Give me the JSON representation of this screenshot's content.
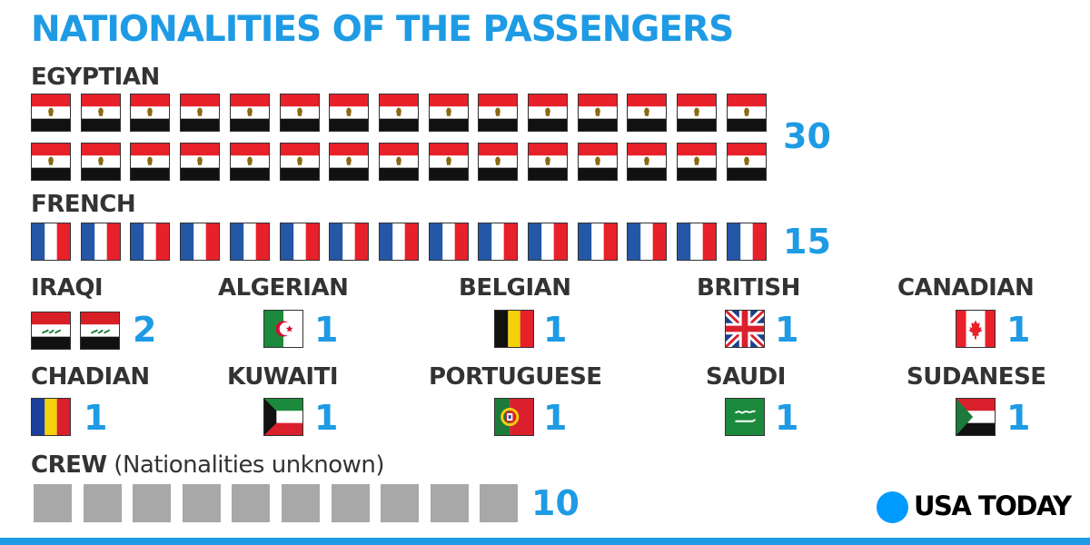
{
  "colors": {
    "accent": "#1e9be4",
    "text": "#333333",
    "crew": "#a8a8a8",
    "brand_dot": "#009bff"
  },
  "chart_data": {
    "type": "pictogram",
    "title": "NATIONALITIES OF THE PASSENGERS",
    "categories": [
      "EGYPTIAN",
      "FRENCH",
      "IRAQI",
      "ALGERIAN",
      "BELGIAN",
      "BRITISH",
      "CANADIAN",
      "CHADIAN",
      "KUWAITI",
      "PORTUGUESE",
      "SAUDI",
      "SUDANESE",
      "CREW"
    ],
    "values": [
      30,
      15,
      2,
      1,
      1,
      1,
      1,
      1,
      1,
      1,
      1,
      1,
      10
    ],
    "crew_note": "(Nationalities unknown)",
    "icons": [
      "egypt-flag",
      "france-flag",
      "iraq-flag",
      "algeria-flag",
      "belgium-flag",
      "uk-flag",
      "canada-flag",
      "chad-flag",
      "kuwait-flag",
      "portugal-flag",
      "saudi-flag",
      "sudan-flag",
      "gray-square"
    ]
  },
  "brand": "USA TODAY"
}
